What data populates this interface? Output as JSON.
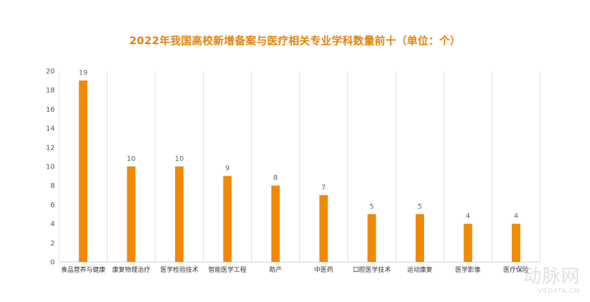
{
  "chart_data": {
    "type": "bar",
    "title": "2022年我国高校新增备案与医疗相关专业学科数量前十（单位：个）",
    "categories": [
      "食品营养与健康",
      "康复物理治疗",
      "医学检验技术",
      "智能医学工程",
      "助产",
      "中医药",
      "口腔医学技术",
      "运动康复",
      "医学影像",
      "医疗保险"
    ],
    "values": [
      19,
      10,
      10,
      9,
      8,
      7,
      5,
      5,
      4,
      4
    ],
    "ylim": [
      0,
      20
    ],
    "yticks": [
      0,
      2,
      4,
      6,
      8,
      10,
      12,
      14,
      16,
      18,
      20
    ],
    "grid": "vertical",
    "bar_color": "#f08a00",
    "title_color": "#e3820e"
  },
  "watermark": {
    "text": "动脉网",
    "sub": "VBDATA.CN"
  }
}
